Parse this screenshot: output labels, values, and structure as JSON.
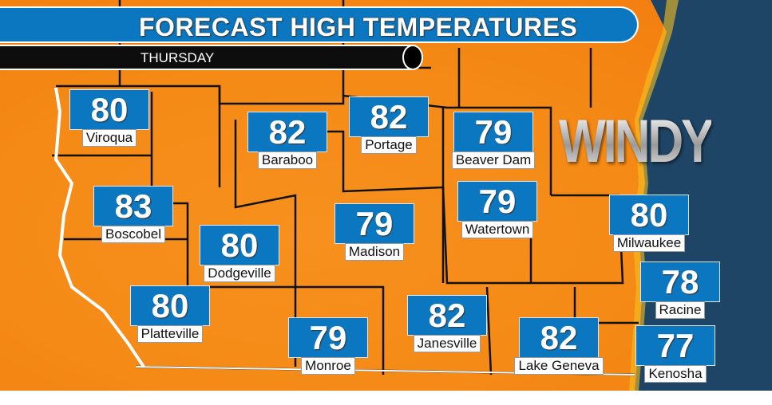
{
  "header": {
    "title": "FORECAST HIGH TEMPERATURES",
    "day": "THURSDAY"
  },
  "brand": "WINDY",
  "colors": {
    "banner": "#0a77c0",
    "land": "#f58a16",
    "water": "#1f4566",
    "subbar": "#0d0d0d"
  },
  "cities": [
    {
      "name": "Viroqua",
      "temp": "80"
    },
    {
      "name": "Baraboo",
      "temp": "82"
    },
    {
      "name": "Portage",
      "temp": "82"
    },
    {
      "name": "Beaver Dam",
      "temp": "79"
    },
    {
      "name": "Boscobel",
      "temp": "83"
    },
    {
      "name": "Watertown",
      "temp": "79"
    },
    {
      "name": "Milwaukee",
      "temp": "80"
    },
    {
      "name": "Madison",
      "temp": "79"
    },
    {
      "name": "Dodgeville",
      "temp": "80"
    },
    {
      "name": "Racine",
      "temp": "78"
    },
    {
      "name": "Platteville",
      "temp": "80"
    },
    {
      "name": "Janesville",
      "temp": "82"
    },
    {
      "name": "Monroe",
      "temp": "79"
    },
    {
      "name": "Lake Geneva",
      "temp": "82"
    },
    {
      "name": "Kenosha",
      "temp": "77"
    }
  ]
}
